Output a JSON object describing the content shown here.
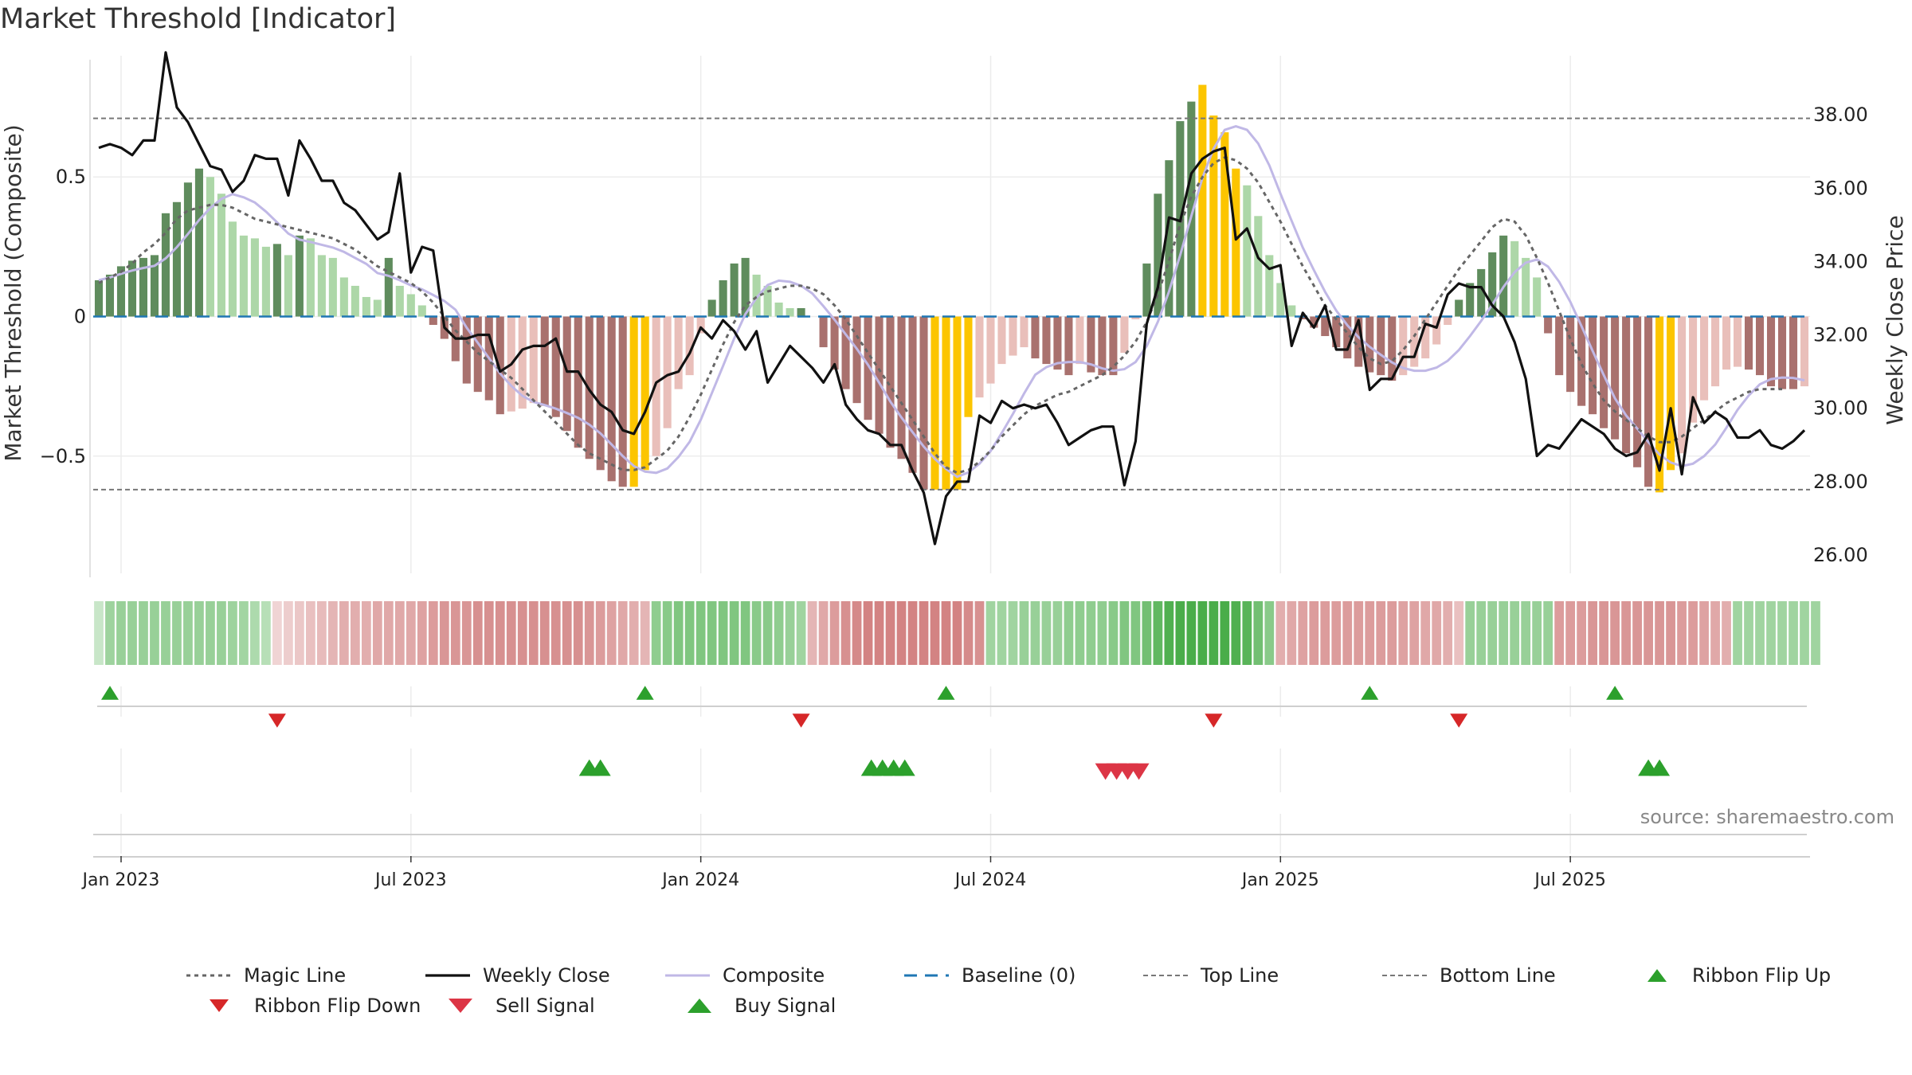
{
  "title": "Market Threshold [Indicator]",
  "source": "source: sharemaestro.com",
  "colors": {
    "strong_up": "#5f8c5d",
    "weak_up": "#add7a8",
    "strong_down": "#a9716e",
    "weak_down": "#e9bfba",
    "extreme": "#fcc500",
    "close": "#111111",
    "composite": "#c0b8e6",
    "magic": "#666666",
    "baseline": "#1f77b4",
    "threshold": "#777777",
    "buy": "#2ca02c",
    "sell": "#d62728",
    "ribbon_up": "#2ca02c",
    "ribbon_down": "#d62728"
  },
  "chart_data": {
    "type": "bar+line",
    "title": "Market Threshold [Indicator]",
    "ylabel_left": "Market Threshold (Composite)",
    "ylabel_right": "Weekly Close Price",
    "ylim_left": [
      -0.92,
      0.92
    ],
    "ylim_right": [
      25.5,
      39.5
    ],
    "left_ticks": [
      {
        "v": 0.5,
        "label": "0.5"
      },
      {
        "v": 0,
        "label": "0"
      },
      {
        "v": -0.5,
        "label": "−0.5"
      }
    ],
    "right_ticks": [
      {
        "v": 38,
        "label": "38.00"
      },
      {
        "v": 36,
        "label": "36.00"
      },
      {
        "v": 34,
        "label": "34.00"
      },
      {
        "v": 32,
        "label": "32.00"
      },
      {
        "v": 30,
        "label": "30.00"
      },
      {
        "v": 28,
        "label": "28.00"
      },
      {
        "v": 26,
        "label": "26.00"
      }
    ],
    "x_ticks": [
      "Jan 2023",
      "Jul 2023",
      "Jan 2024",
      "Jul 2024",
      "Jan 2025",
      "Jul 2025"
    ],
    "x_tick_weeks": [
      2,
      28,
      54,
      80,
      106,
      132
    ],
    "top_line": 0.71,
    "bottom_line": -0.62,
    "composite_bars": [
      0.13,
      0.15,
      0.18,
      0.2,
      0.21,
      0.22,
      0.37,
      0.41,
      0.48,
      0.53,
      0.5,
      0.44,
      0.34,
      0.29,
      0.28,
      0.25,
      0.26,
      0.22,
      0.29,
      0.28,
      0.22,
      0.21,
      0.14,
      0.11,
      0.07,
      0.06,
      0.21,
      0.11,
      0.08,
      0.04,
      -0.03,
      -0.08,
      -0.16,
      -0.24,
      -0.27,
      -0.3,
      -0.35,
      -0.34,
      -0.33,
      -0.31,
      -0.32,
      -0.36,
      -0.41,
      -0.47,
      -0.51,
      -0.55,
      -0.59,
      -0.61,
      -0.61,
      -0.55,
      -0.5,
      -0.4,
      -0.26,
      -0.21,
      -0.06,
      0.06,
      0.13,
      0.19,
      0.21,
      0.15,
      0.11,
      0.05,
      0.03,
      0.03,
      0.0,
      -0.11,
      -0.19,
      -0.26,
      -0.31,
      -0.37,
      -0.42,
      -0.47,
      -0.51,
      -0.56,
      -0.62,
      -0.62,
      -0.62,
      -0.62,
      -0.36,
      -0.29,
      -0.24,
      -0.17,
      -0.14,
      -0.11,
      -0.15,
      -0.17,
      -0.19,
      -0.21,
      -0.17,
      -0.2,
      -0.21,
      -0.21,
      -0.13,
      -0.01,
      0.19,
      0.44,
      0.56,
      0.7,
      0.77,
      0.83,
      0.72,
      0.66,
      0.53,
      0.47,
      0.36,
      0.22,
      0.12,
      0.04,
      -0.01,
      -0.04,
      -0.07,
      -0.11,
      -0.15,
      -0.18,
      -0.2,
      -0.21,
      -0.23,
      -0.21,
      -0.18,
      -0.15,
      -0.1,
      -0.03,
      0.06,
      0.12,
      0.17,
      0.23,
      0.29,
      0.27,
      0.21,
      0.14,
      -0.06,
      -0.21,
      -0.27,
      -0.32,
      -0.35,
      -0.4,
      -0.44,
      -0.49,
      -0.54,
      -0.61,
      -0.63,
      -0.55,
      -0.49,
      -0.38,
      -0.3,
      -0.25,
      -0.19,
      -0.18,
      -0.19,
      -0.21,
      -0.25,
      -0.26,
      -0.26,
      -0.25
    ],
    "extreme_weeks": [
      48,
      49,
      75,
      76,
      77,
      78,
      99,
      100,
      101,
      102,
      140,
      141
    ],
    "weekly_close": [
      37.1,
      37.2,
      37.1,
      36.9,
      37.3,
      37.3,
      39.7,
      38.2,
      37.8,
      37.2,
      36.6,
      36.5,
      35.9,
      36.2,
      36.9,
      36.8,
      36.8,
      35.8,
      37.3,
      36.8,
      36.2,
      36.2,
      35.6,
      35.4,
      35.0,
      34.6,
      34.8,
      36.4,
      33.7,
      34.4,
      34.3,
      32.2,
      31.9,
      31.9,
      32.0,
      32.0,
      31.0,
      31.2,
      31.6,
      31.7,
      31.7,
      31.9,
      31.0,
      31.0,
      30.5,
      30.1,
      29.9,
      29.4,
      29.3,
      29.9,
      30.7,
      30.9,
      31.0,
      31.5,
      32.2,
      31.9,
      32.4,
      32.1,
      31.6,
      32.1,
      30.7,
      31.2,
      31.7,
      31.4,
      31.1,
      30.7,
      31.2,
      30.1,
      29.7,
      29.4,
      29.3,
      29.0,
      29.0,
      28.3,
      27.7,
      26.3,
      27.6,
      28.0,
      28.0,
      29.8,
      29.6,
      30.2,
      30.0,
      30.1,
      30.0,
      30.1,
      29.6,
      29.0,
      29.2,
      29.4,
      29.5,
      29.5,
      27.9,
      29.1,
      32.3,
      33.3,
      35.2,
      35.1,
      36.4,
      36.8,
      37.0,
      37.1,
      34.6,
      34.9,
      34.1,
      33.8,
      33.9,
      31.7,
      32.6,
      32.2,
      32.8,
      31.6,
      31.6,
      32.4,
      30.5,
      30.8,
      30.8,
      31.4,
      31.4,
      32.3,
      32.2,
      33.1,
      33.4,
      33.3,
      33.3,
      32.8,
      32.5,
      31.8,
      30.8,
      28.7,
      29.0,
      28.9,
      29.3,
      29.7,
      29.5,
      29.3,
      28.9,
      28.7,
      28.8,
      29.3,
      28.3,
      30.0,
      28.2,
      30.3,
      29.6,
      29.9,
      29.7,
      29.2,
      29.2,
      29.4,
      29.0,
      28.9,
      29.1,
      29.4
    ],
    "magic_line": [
      0.12,
      0.14,
      0.16,
      0.19,
      0.23,
      0.26,
      0.3,
      0.35,
      0.38,
      0.39,
      0.4,
      0.4,
      0.39,
      0.37,
      0.35,
      0.34,
      0.33,
      0.32,
      0.31,
      0.3,
      0.29,
      0.28,
      0.26,
      0.24,
      0.21,
      0.18,
      0.16,
      0.14,
      0.12,
      0.09,
      0.05,
      0.0,
      -0.05,
      -0.09,
      -0.13,
      -0.16,
      -0.19,
      -0.22,
      -0.26,
      -0.3,
      -0.34,
      -0.38,
      -0.42,
      -0.46,
      -0.49,
      -0.51,
      -0.53,
      -0.55,
      -0.55,
      -0.54,
      -0.51,
      -0.48,
      -0.43,
      -0.36,
      -0.28,
      -0.19,
      -0.1,
      -0.02,
      0.04,
      0.07,
      0.09,
      0.1,
      0.11,
      0.11,
      0.1,
      0.08,
      0.04,
      -0.01,
      -0.07,
      -0.13,
      -0.19,
      -0.25,
      -0.31,
      -0.37,
      -0.43,
      -0.49,
      -0.54,
      -0.56,
      -0.55,
      -0.52,
      -0.48,
      -0.43,
      -0.39,
      -0.35,
      -0.32,
      -0.3,
      -0.28,
      -0.27,
      -0.25,
      -0.23,
      -0.21,
      -0.18,
      -0.14,
      -0.09,
      -0.02,
      0.08,
      0.2,
      0.33,
      0.43,
      0.5,
      0.55,
      0.57,
      0.56,
      0.53,
      0.48,
      0.41,
      0.34,
      0.26,
      0.18,
      0.11,
      0.04,
      -0.01,
      -0.06,
      -0.11,
      -0.15,
      -0.17,
      -0.16,
      -0.12,
      -0.07,
      -0.01,
      0.05,
      0.11,
      0.17,
      0.22,
      0.27,
      0.32,
      0.35,
      0.34,
      0.29,
      0.21,
      0.12,
      0.02,
      -0.08,
      -0.17,
      -0.24,
      -0.3,
      -0.34,
      -0.37,
      -0.4,
      -0.43,
      -0.45,
      -0.45,
      -0.43,
      -0.4,
      -0.37,
      -0.34,
      -0.31,
      -0.29,
      -0.27,
      -0.26,
      -0.26,
      -0.26
    ],
    "ribbon": [
      0.15,
      0.42,
      0.45,
      0.45,
      0.45,
      0.45,
      0.45,
      0.45,
      0.45,
      0.45,
      0.45,
      0.45,
      0.42,
      0.38,
      0.32,
      0.25,
      -0.15,
      -0.2,
      -0.25,
      -0.3,
      -0.35,
      -0.4,
      -0.45,
      -0.45,
      -0.45,
      -0.5,
      -0.5,
      -0.5,
      -0.5,
      -0.55,
      -0.6,
      -0.65,
      -0.65,
      -0.65,
      -0.7,
      -0.7,
      -0.7,
      -0.7,
      -0.7,
      -0.7,
      -0.7,
      -0.7,
      -0.7,
      -0.7,
      -0.65,
      -0.6,
      -0.55,
      -0.5,
      -0.45,
      -0.4,
      0.5,
      0.55,
      0.6,
      0.6,
      0.6,
      0.6,
      0.6,
      0.6,
      0.6,
      0.55,
      0.55,
      0.5,
      0.45,
      0.4,
      -0.4,
      -0.5,
      -0.6,
      -0.7,
      -0.75,
      -0.8,
      -0.8,
      -0.8,
      -0.8,
      -0.8,
      -0.8,
      -0.8,
      -0.8,
      -0.8,
      -0.75,
      -0.7,
      0.4,
      0.4,
      0.4,
      0.45,
      0.45,
      0.45,
      0.45,
      0.5,
      0.5,
      0.5,
      0.5,
      0.55,
      0.6,
      0.6,
      0.7,
      0.8,
      0.9,
      0.95,
      0.95,
      0.95,
      0.95,
      0.95,
      0.9,
      0.85,
      0.7,
      0.55,
      -0.45,
      -0.5,
      -0.55,
      -0.6,
      -0.6,
      -0.6,
      -0.6,
      -0.6,
      -0.6,
      -0.6,
      -0.6,
      -0.55,
      -0.55,
      -0.5,
      -0.5,
      -0.45,
      -0.3,
      0.45,
      0.45,
      0.45,
      0.45,
      0.45,
      0.45,
      0.45,
      0.45,
      -0.6,
      -0.6,
      -0.6,
      -0.65,
      -0.65,
      -0.65,
      -0.65,
      -0.65,
      -0.65,
      -0.65,
      -0.65,
      -0.6,
      -0.6,
      -0.55,
      -0.5,
      -0.45,
      0.4,
      0.4,
      0.4,
      0.4,
      0.4,
      0.4,
      0.4,
      0.4
    ],
    "ribbon_flip_up_weeks": [
      1,
      49,
      76,
      114,
      136
    ],
    "ribbon_flip_down_weeks": [
      16,
      63,
      100,
      122
    ],
    "buy_signal_weeks": [
      44,
      45,
      69.3,
      70.3,
      71.3,
      72.3,
      139,
      140
    ],
    "sell_signal_weeks": [
      90.3,
      91.3,
      92.3,
      93.3
    ]
  },
  "legend": [
    {
      "key": "magic",
      "label": "Magic Line"
    },
    {
      "key": "close",
      "label": "Weekly Close"
    },
    {
      "key": "composite",
      "label": "Composite"
    },
    {
      "key": "baseline",
      "label": "Baseline (0)"
    },
    {
      "key": "top",
      "label": "Top Line"
    },
    {
      "key": "bottom",
      "label": "Bottom Line"
    },
    {
      "key": "flip_up",
      "label": "Ribbon Flip Up"
    },
    {
      "key": "flip_down",
      "label": "Ribbon Flip Down"
    },
    {
      "key": "sell",
      "label": "Sell Signal"
    },
    {
      "key": "buy",
      "label": "Buy Signal"
    }
  ]
}
